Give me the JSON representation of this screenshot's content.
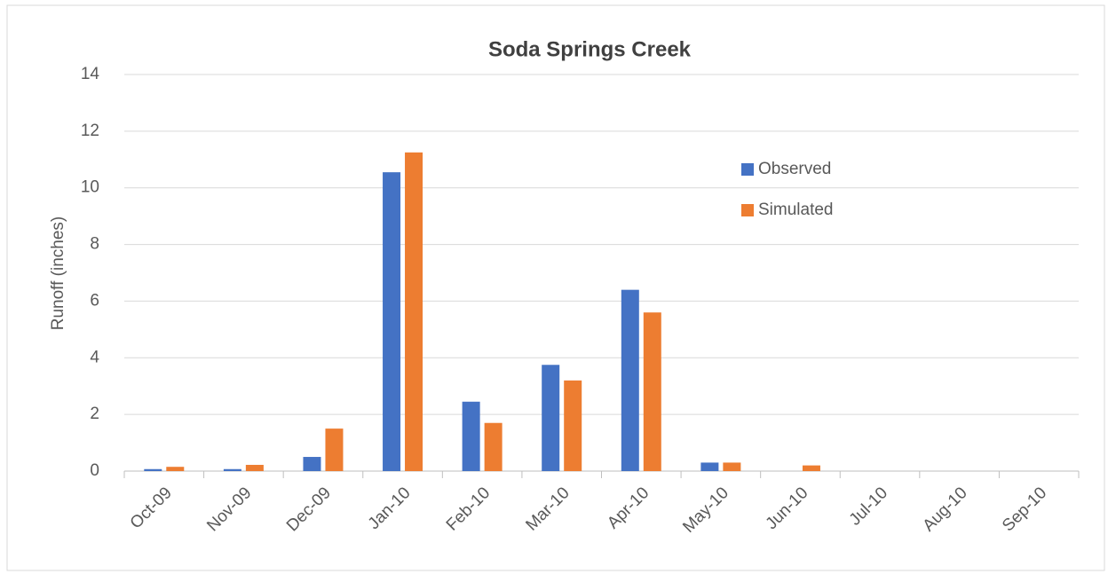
{
  "chart_data": {
    "type": "bar",
    "title": "Soda Springs Creek",
    "y_label": "Runoff (inches)",
    "categories": [
      "Oct-09",
      "Nov-09",
      "Dec-09",
      "Jan-10",
      "Feb-10",
      "Mar-10",
      "Apr-10",
      "May-10",
      "Jun-10",
      "Jul-10",
      "Aug-10",
      "Sep-10"
    ],
    "series": [
      {
        "name": "Observed",
        "color": "#4472c4",
        "values": [
          0.07,
          0.07,
          0.5,
          10.55,
          2.45,
          3.75,
          6.4,
          0.3,
          0,
          0,
          0,
          0
        ]
      },
      {
        "name": "Simulated",
        "color": "#ed7d31",
        "values": [
          0.15,
          0.22,
          1.5,
          11.25,
          1.7,
          3.2,
          5.6,
          0.3,
          0.2,
          0,
          0,
          0
        ]
      }
    ],
    "ylim": [
      0,
      14
    ],
    "yticks": [
      0,
      2,
      4,
      6,
      8,
      10,
      12,
      14
    ],
    "grid": true,
    "legend": "upper right"
  }
}
